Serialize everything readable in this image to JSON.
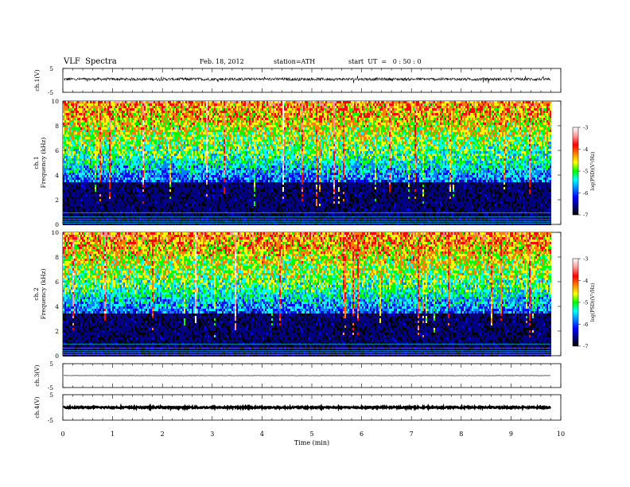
{
  "header": {
    "title": "VLF  Spectra",
    "date": "Feb. 18, 2012",
    "station": "station=ATH",
    "start": "start  UT  =   0 : 50 : 0"
  },
  "chart_data": [
    {
      "type": "line",
      "panel": "ch1-waveform",
      "ylabel": "ch.1(V)",
      "ylim": [
        -5,
        5
      ],
      "yticks": [
        "5",
        "-5"
      ],
      "series": [
        {
          "baseline": 0.5,
          "noise": 0.6
        }
      ]
    },
    {
      "type": "heatmap",
      "panel": "ch1-spectrogram",
      "ylabel_line1": "ch.1",
      "ylabel_line2": "Frequency  (kHz)",
      "ylim": [
        0,
        10
      ],
      "yticks": [
        "0",
        "2",
        "4",
        "6",
        "8",
        "10"
      ],
      "colorbar": {
        "label": "log(PSD)(V²/Hz)",
        "range": [
          -7,
          -3
        ],
        "ticks": [
          "-3",
          "-4",
          "-5",
          "-6",
          "-7"
        ]
      }
    },
    {
      "type": "heatmap",
      "panel": "ch2-spectrogram",
      "ylabel_line1": "ch.2",
      "ylabel_line2": "Frequency  (kHz)",
      "ylim": [
        0,
        10
      ],
      "yticks": [
        "0",
        "2",
        "4",
        "6",
        "8",
        "10"
      ],
      "colorbar": {
        "label": "log(PSD)(V²/Hz)",
        "range": [
          -7,
          -3
        ],
        "ticks": [
          "-3",
          "-4",
          "-5",
          "-6",
          "-7"
        ]
      }
    },
    {
      "type": "line",
      "panel": "ch3-waveform",
      "ylabel": "ch.3(V)",
      "ylim": [
        -5,
        5
      ],
      "yticks": [
        "5",
        "-5"
      ],
      "series": [
        {
          "baseline": 0.0,
          "noise": 0.08
        }
      ]
    },
    {
      "type": "line",
      "panel": "ch4-waveform",
      "ylabel": "ch.4(V)",
      "ylim": [
        -5,
        5
      ],
      "yticks": [
        "5",
        "-5"
      ],
      "series": [
        {
          "baseline": 0.0,
          "noise": 0.3
        }
      ]
    }
  ],
  "x_axis": {
    "label": "Time  (min)",
    "range": [
      0,
      10
    ],
    "data_end": 9.8,
    "ticks": [
      "0",
      "1",
      "2",
      "3",
      "4",
      "5",
      "6",
      "7",
      "8",
      "9",
      "10"
    ]
  },
  "colors": {
    "colormap": [
      "#000000",
      "#000080",
      "#0000ff",
      "#0080ff",
      "#00ffff",
      "#00ff00",
      "#ffff00",
      "#ff8000",
      "#ff0000",
      "#ff9999",
      "#ffffff"
    ]
  }
}
